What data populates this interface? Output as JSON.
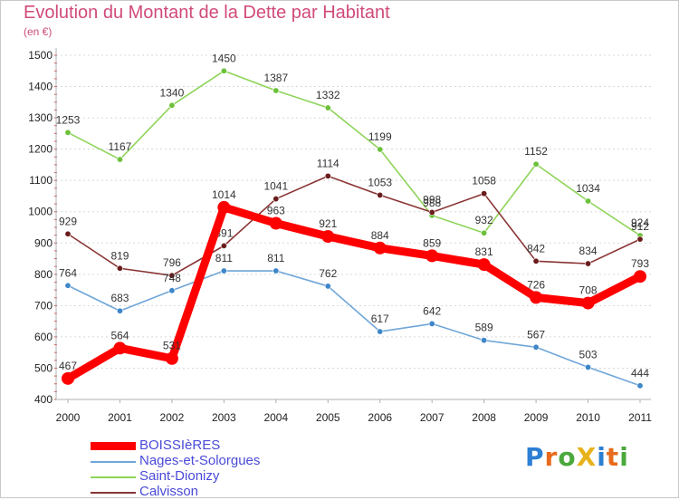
{
  "header": {
    "title": "Evolution du Montant de la Dette par Habitant",
    "subtitle": "(en €)"
  },
  "logo": {
    "text": "ProXiti",
    "letters": [
      "P",
      "r",
      "o",
      "X",
      "i",
      "t",
      "i"
    ],
    "colors": [
      "#2d7fd3",
      "#e86a1c",
      "#4aa83c",
      "#e8b21c",
      "#2d7fd3",
      "#e86a1c",
      "#4aa83c"
    ]
  },
  "chart_data": {
    "type": "line",
    "title": "Evolution du Montant de la Dette par Habitant",
    "subtitle": "(en €)",
    "x": [
      "2000",
      "2001",
      "2002",
      "2003",
      "2004",
      "2005",
      "2006",
      "2007",
      "2008",
      "2009",
      "2010",
      "2011"
    ],
    "yticks": [
      "400",
      "500",
      "600",
      "700",
      "800",
      "900",
      "1000",
      "1100",
      "1200",
      "1300",
      "1400",
      "1500"
    ],
    "ylim": [
      400,
      1500
    ],
    "grid": "horizontal-dashed",
    "legend_position": "bottom-left",
    "series": [
      {
        "name": "Saint-Dionizy",
        "color": "#8fd45a",
        "marker": "#6cc13a",
        "values": [
          1253,
          1167,
          1340,
          1450,
          1387,
          1332,
          1199,
          988,
          932,
          1152,
          1034,
          924
        ],
        "labels": [
          "1253",
          "1167",
          "1340",
          "1450",
          "1387",
          "1332",
          "1199",
          "988",
          "932",
          "1152",
          "1034",
          "924"
        ]
      },
      {
        "name": "Calvisson",
        "color": "#8a3434",
        "marker": "#6a1c1c",
        "values": [
          929,
          819,
          796,
          891,
          1041,
          1114,
          1053,
          998,
          1058,
          842,
          834,
          912
        ],
        "labels": [
          "929",
          "819",
          "796",
          "891",
          "1041",
          "1114",
          "1053",
          "998",
          "1058",
          "842",
          "834",
          "912"
        ]
      },
      {
        "name": "Nages-et-Solorgues",
        "color": "#6fa6d8",
        "marker": "#3d86c8",
        "values": [
          764,
          683,
          748,
          811,
          811,
          762,
          617,
          642,
          589,
          567,
          503,
          444
        ],
        "labels": [
          "764",
          "683",
          "748",
          "811",
          "811",
          "762",
          "617",
          "642",
          "589",
          "567",
          "503",
          "444"
        ]
      },
      {
        "name": "BOISSIèRES",
        "color": "#ff0000",
        "marker": "#ff0000",
        "values": [
          467,
          564,
          531,
          1014,
          963,
          921,
          884,
          859,
          831,
          726,
          708,
          793
        ],
        "labels": [
          "467",
          "564",
          "531",
          "1014",
          "963",
          "921",
          "884",
          "859",
          "831",
          "726",
          "708",
          "793"
        ]
      }
    ],
    "legend_order": [
      "BOISSIèRES",
      "Nages-et-Solorgues",
      "Saint-Dionizy",
      "Calvisson"
    ]
  }
}
